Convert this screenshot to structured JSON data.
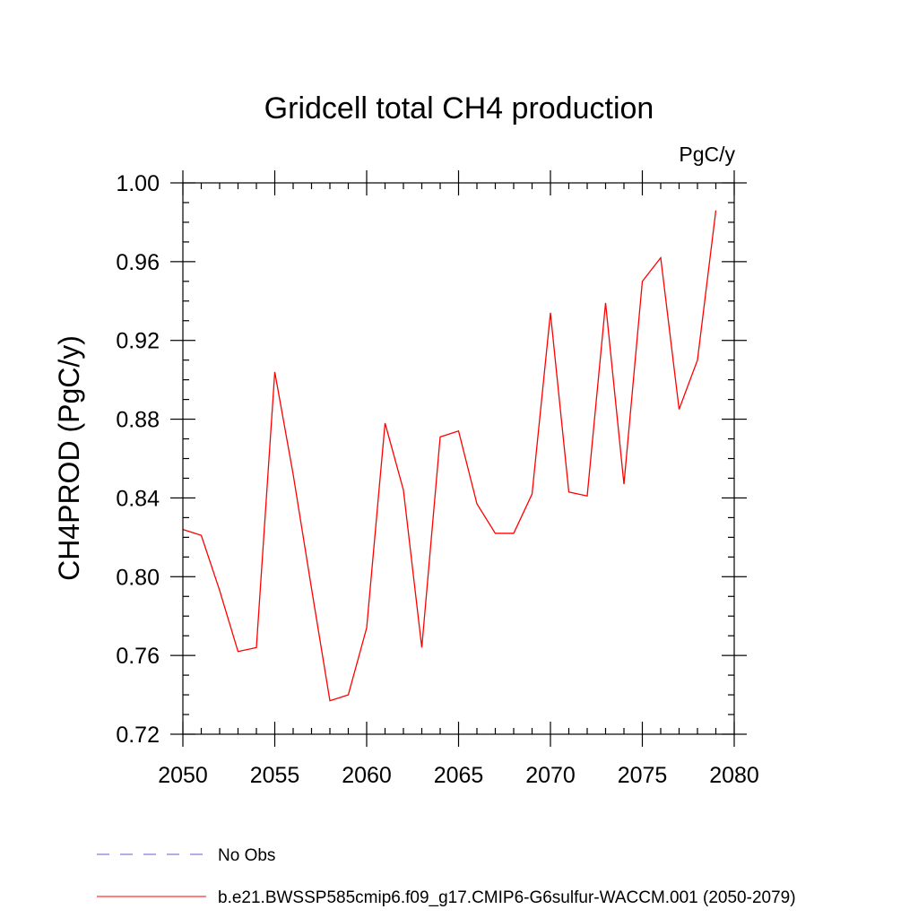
{
  "chart_data": {
    "type": "line",
    "title": "Gridcell total CH4 production",
    "units_label": "PgC/y",
    "ylabel": "CH4PROD  (PgC/y)",
    "xlabel": "",
    "xlim": [
      2050,
      2080
    ],
    "ylim": [
      0.72,
      1.0
    ],
    "x_ticks": [
      2050,
      2055,
      2060,
      2065,
      2070,
      2075,
      2080
    ],
    "y_ticks": [
      0.72,
      0.76,
      0.8,
      0.84,
      0.88,
      0.92,
      0.96,
      1.0
    ],
    "x_tick_labels": [
      "2050",
      "2055",
      "2060",
      "2065",
      "2070",
      "2075",
      "2080"
    ],
    "y_tick_labels": [
      "0.72",
      "0.76",
      "0.80",
      "0.84",
      "0.88",
      "0.92",
      "0.96",
      "1.00"
    ],
    "grid": false,
    "legend_position": "bottom",
    "series": [
      {
        "name": "b.e21.BWSSP585cmip6.f09_g17.CMIP6-G6sulfur-WACCM.001 (2050-2079)",
        "color": "#ff0000",
        "style": "solid",
        "x": [
          2050,
          2051,
          2052,
          2053,
          2054,
          2055,
          2056,
          2057,
          2058,
          2059,
          2060,
          2061,
          2062,
          2063,
          2064,
          2065,
          2066,
          2067,
          2068,
          2069,
          2070,
          2071,
          2072,
          2073,
          2074,
          2075,
          2076,
          2077,
          2078,
          2079
        ],
        "y": [
          0.824,
          0.821,
          0.793,
          0.762,
          0.764,
          0.904,
          0.852,
          0.794,
          0.737,
          0.74,
          0.774,
          0.878,
          0.844,
          0.764,
          0.871,
          0.874,
          0.837,
          0.822,
          0.822,
          0.842,
          0.934,
          0.843,
          0.841,
          0.939,
          0.847,
          0.95,
          0.962,
          0.885,
          0.91,
          0.986
        ]
      }
    ],
    "legend": [
      {
        "label": "No Obs",
        "color": "#6a5acd",
        "style": "dashed"
      },
      {
        "label": "b.e21.BWSSP585cmip6.f09_g17.CMIP6-G6sulfur-WACCM.001 (2050-2079)",
        "color": "#ff0000",
        "style": "solid"
      }
    ]
  }
}
